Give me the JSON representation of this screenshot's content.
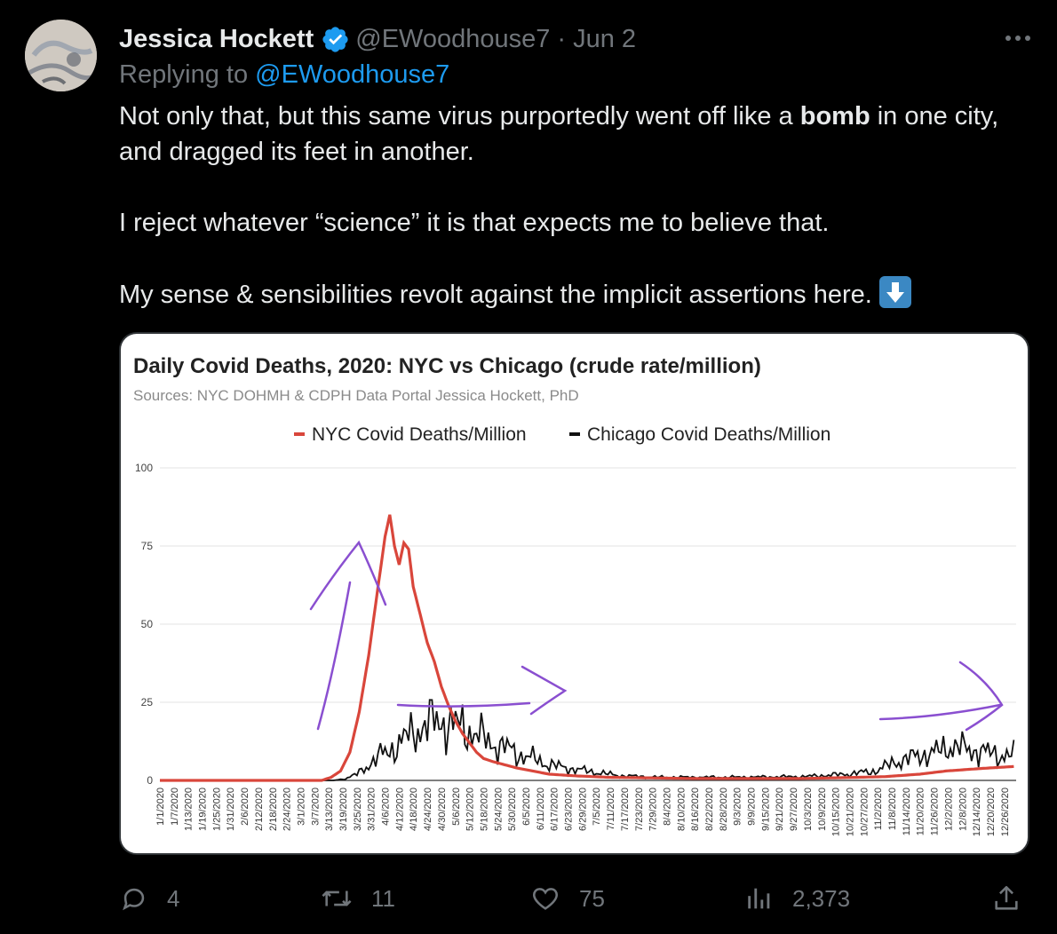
{
  "tweet": {
    "author_name": "Jessica Hockett",
    "handle": "@EWoodhouse7",
    "separator": "·",
    "date": "Jun 2",
    "replying_prefix": "Replying to",
    "replying_to": "@EWoodhouse7",
    "text": {
      "line1_a": "Not only that, but this same virus purportedly went off like a ",
      "line1_bold": "bomb",
      "line1_b": " in one city, and dragged its feet in another.",
      "line2": "I reject whatever “science” it is that expects me to believe that.",
      "line3": "My sense & sensibilities revolt against the implicit assertions here."
    },
    "emoji_icon": "down-arrow-emoji-icon",
    "actions": {
      "replies": "4",
      "retweets": "11",
      "likes": "75",
      "views": "2,373"
    }
  },
  "colors": {
    "background": "#000000",
    "text": "#e7e9ea",
    "muted": "#71767b",
    "link": "#1d9bf0",
    "nyc_line": "#d9463b",
    "chicago_line": "#111111",
    "annotation": "#8a4fd0"
  },
  "chart_data": {
    "type": "line",
    "title": "Daily Covid Deaths, 2020: NYC vs Chicago (crude rate/million)",
    "subtitle": "Sources: NYC DOHMH & CDPH Data Portal Jessica Hockett, PhD",
    "legend_position": "top-center",
    "grid": true,
    "ylim": [
      0,
      100
    ],
    "yticks": [
      "0",
      "25",
      "50",
      "75",
      "100"
    ],
    "x_tick_labels": [
      "1/1/2020",
      "1/7/2020",
      "1/13/2020",
      "1/19/2020",
      "1/25/2020",
      "1/31/2020",
      "2/6/2020",
      "2/12/2020",
      "2/18/2020",
      "2/24/2020",
      "3/1/2020",
      "3/7/2020",
      "3/13/2020",
      "3/19/2020",
      "3/25/2020",
      "3/31/2020",
      "4/6/2020",
      "4/12/2020",
      "4/18/2020",
      "4/24/2020",
      "4/30/2020",
      "5/6/2020",
      "5/12/2020",
      "5/18/2020",
      "5/24/2020",
      "5/30/2020",
      "6/5/2020",
      "6/11/2020",
      "6/17/2020",
      "6/23/2020",
      "6/29/2020",
      "7/5/2020",
      "7/11/2020",
      "7/17/2020",
      "7/23/2020",
      "7/29/2020",
      "8/4/2020",
      "8/10/2020",
      "8/16/2020",
      "8/22/2020",
      "8/28/2020",
      "9/3/2020",
      "9/9/2020",
      "9/15/2020",
      "9/21/2020",
      "9/27/2020",
      "10/3/2020",
      "10/9/2020",
      "10/15/2020",
      "10/21/2020",
      "10/27/2020",
      "11/2/2020",
      "11/8/2020",
      "11/14/2020",
      "11/20/2020",
      "11/26/2020",
      "12/2/2020",
      "12/8/2020",
      "12/14/2020",
      "12/20/2020",
      "12/26/2020"
    ],
    "x_start": "2020-01-01",
    "series": [
      {
        "name": "NYC Covid Deaths/Million",
        "color": "#d9463b",
        "points": [
          [
            "2020-01-01",
            0
          ],
          [
            "2020-03-10",
            0
          ],
          [
            "2020-03-14",
            1
          ],
          [
            "2020-03-18",
            3
          ],
          [
            "2020-03-22",
            9
          ],
          [
            "2020-03-26",
            22
          ],
          [
            "2020-03-30",
            40
          ],
          [
            "2020-04-03",
            62
          ],
          [
            "2020-04-06",
            78
          ],
          [
            "2020-04-08",
            85
          ],
          [
            "2020-04-10",
            75
          ],
          [
            "2020-04-12",
            69
          ],
          [
            "2020-04-14",
            76
          ],
          [
            "2020-04-16",
            74
          ],
          [
            "2020-04-18",
            62
          ],
          [
            "2020-04-21",
            53
          ],
          [
            "2020-04-24",
            44
          ],
          [
            "2020-04-27",
            38
          ],
          [
            "2020-04-30",
            30
          ],
          [
            "2020-05-03",
            24
          ],
          [
            "2020-05-06",
            19
          ],
          [
            "2020-05-09",
            15
          ],
          [
            "2020-05-12",
            12
          ],
          [
            "2020-05-15",
            9
          ],
          [
            "2020-05-18",
            7
          ],
          [
            "2020-05-22",
            6
          ],
          [
            "2020-05-27",
            5
          ],
          [
            "2020-06-01",
            4
          ],
          [
            "2020-06-08",
            3
          ],
          [
            "2020-06-15",
            2
          ],
          [
            "2020-06-25",
            1.5
          ],
          [
            "2020-07-10",
            1
          ],
          [
            "2020-08-15",
            0.6
          ],
          [
            "2020-09-30",
            0.6
          ],
          [
            "2020-10-20",
            0.9
          ],
          [
            "2020-11-05",
            1.2
          ],
          [
            "2020-11-20",
            2
          ],
          [
            "2020-12-01",
            3
          ],
          [
            "2020-12-10",
            3.5
          ],
          [
            "2020-12-20",
            4
          ],
          [
            "2020-12-31",
            4.5
          ]
        ]
      },
      {
        "name": "Chicago Covid Deaths/Million",
        "color": "#111111",
        "points": [
          [
            "2020-01-01",
            0
          ],
          [
            "2020-03-15",
            0
          ],
          [
            "2020-03-20",
            0.5
          ],
          [
            "2020-03-25",
            2
          ],
          [
            "2020-03-30",
            5
          ],
          [
            "2020-04-04",
            8
          ],
          [
            "2020-04-09",
            10
          ],
          [
            "2020-04-14",
            13
          ],
          [
            "2020-04-19",
            16
          ],
          [
            "2020-04-24",
            18
          ],
          [
            "2020-04-29",
            19
          ],
          [
            "2020-05-04",
            18
          ],
          [
            "2020-05-09",
            17
          ],
          [
            "2020-05-14",
            15
          ],
          [
            "2020-05-19",
            13
          ],
          [
            "2020-05-24",
            11
          ],
          [
            "2020-05-29",
            10
          ],
          [
            "2020-06-03",
            8
          ],
          [
            "2020-06-08",
            7
          ],
          [
            "2020-06-15",
            5
          ],
          [
            "2020-06-22",
            4
          ],
          [
            "2020-07-01",
            3
          ],
          [
            "2020-07-15",
            1.5
          ],
          [
            "2020-08-01",
            1
          ],
          [
            "2020-09-01",
            1
          ],
          [
            "2020-10-01",
            1.2
          ],
          [
            "2020-10-20",
            2
          ],
          [
            "2020-11-01",
            3
          ],
          [
            "2020-11-10",
            6
          ],
          [
            "2020-11-20",
            8
          ],
          [
            "2020-11-27",
            9
          ],
          [
            "2020-12-03",
            11
          ],
          [
            "2020-12-10",
            10
          ],
          [
            "2020-12-18",
            9
          ],
          [
            "2020-12-25",
            8
          ],
          [
            "2020-12-31",
            8
          ]
        ]
      }
    ]
  }
}
